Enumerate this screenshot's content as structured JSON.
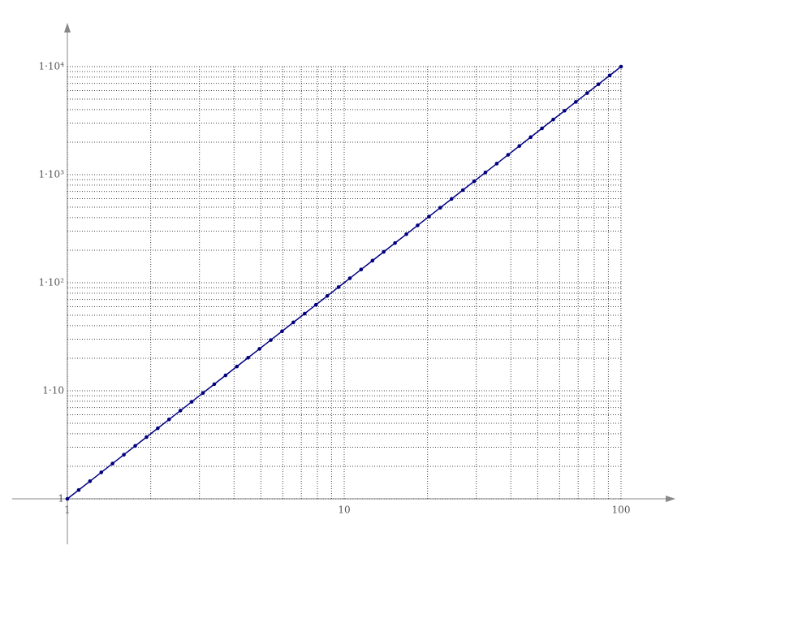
{
  "chart_data": {
    "type": "line",
    "log_x": true,
    "log_y": true,
    "grid": true,
    "markers": true,
    "x": [
      1,
      1.099,
      1.207,
      1.326,
      1.456,
      1.6,
      1.758,
      1.931,
      2.121,
      2.33,
      2.56,
      2.812,
      3.089,
      3.393,
      3.728,
      4.095,
      4.498,
      4.942,
      5.429,
      5.964,
      6.551,
      7.197,
      7.906,
      8.685,
      9.541,
      10.48,
      11.51,
      12.65,
      13.89,
      15.26,
      16.77,
      18.42,
      20.24,
      22.23,
      24.42,
      26.83,
      29.47,
      32.37,
      35.57,
      39.07,
      42.92,
      47.15,
      51.8,
      56.9,
      62.51,
      68.66,
      75.44,
      82.86,
      91.03,
      100
    ],
    "series": [
      {
        "color": "#000080",
        "values": [
          1,
          1.207,
          1.456,
          1.758,
          2.121,
          2.56,
          3.089,
          3.728,
          4.498,
          5.429,
          6.551,
          7.906,
          9.541,
          11.51,
          13.89,
          16.77,
          20.24,
          24.42,
          29.47,
          35.57,
          42.92,
          51.8,
          62.51,
          75.44,
          91.03,
          109.9,
          132.6,
          160,
          193.1,
          233,
          281.2,
          339.3,
          409.5,
          494.2,
          596.4,
          719.7,
          868.5,
          1048,
          1265,
          1526,
          1842,
          2223,
          2683,
          3237,
          3907,
          4715,
          5690,
          6866,
          8286,
          10000
        ]
      }
    ],
    "xlim": [
      1,
      100
    ],
    "ylim": [
      1,
      10000
    ],
    "xticks": [
      1,
      10,
      100
    ],
    "yticks": [
      1,
      {
        "value": 10,
        "label": "1·10"
      },
      {
        "value": 100,
        "label": "1·10²"
      },
      {
        "value": 1000,
        "label": "1·10³"
      },
      {
        "value": 10000,
        "label": "1·10⁴"
      }
    ],
    "xgrid_minor": [
      2,
      3,
      4,
      5,
      6,
      7,
      8,
      9,
      20,
      30,
      40,
      50,
      60,
      70,
      80,
      90
    ],
    "ygrid_minor": [
      2,
      3,
      4,
      5,
      6,
      7,
      8,
      9,
      20,
      30,
      40,
      50,
      60,
      70,
      80,
      90,
      200,
      300,
      400,
      500,
      600,
      700,
      800,
      900,
      2000,
      3000,
      4000,
      5000,
      6000,
      7000,
      8000,
      9000
    ]
  }
}
